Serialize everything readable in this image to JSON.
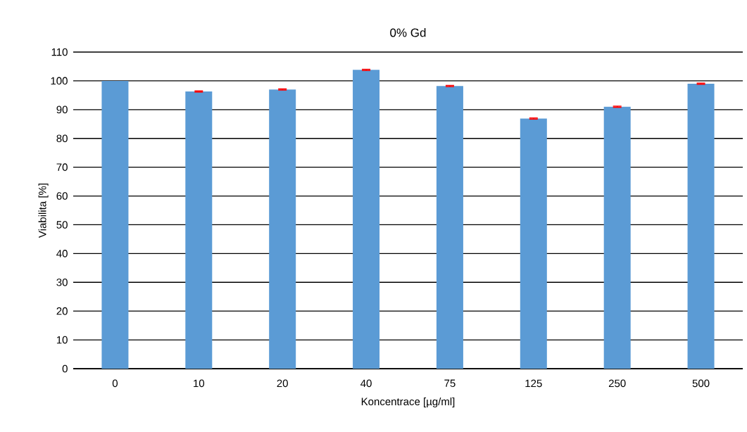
{
  "chart_data": {
    "type": "bar",
    "title": "0% Gd",
    "xlabel": "Koncentrace [µg/ml]",
    "ylabel": "Viabilita [%]",
    "categories": [
      "0",
      "10",
      "20",
      "40",
      "75",
      "125",
      "250",
      "500"
    ],
    "values": [
      100,
      96.3,
      97.0,
      103.8,
      98.2,
      86.9,
      91.0,
      99.0
    ],
    "errors": [
      null,
      0.2,
      0.2,
      0.2,
      0.2,
      0.2,
      0.2,
      0.2
    ],
    "color": "#5b9bd5",
    "ylim": [
      0,
      110
    ],
    "yticks": [
      0,
      10,
      20,
      30,
      40,
      50,
      60,
      70,
      80,
      90,
      100,
      110
    ],
    "grid": "y"
  }
}
